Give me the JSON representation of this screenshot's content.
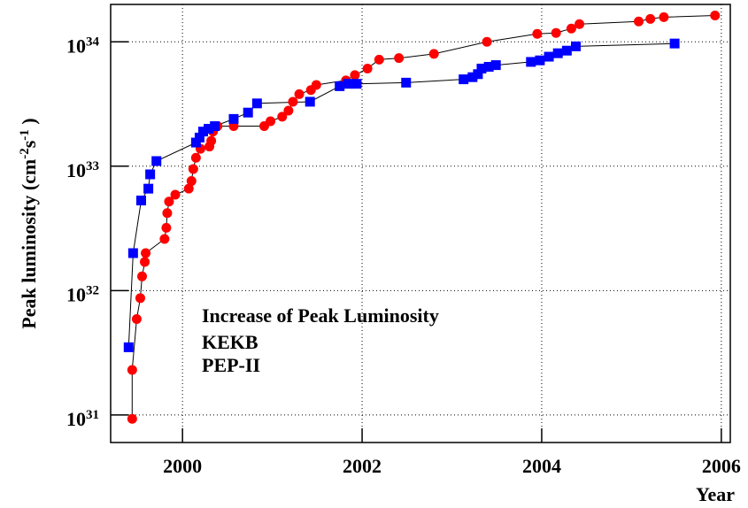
{
  "chart_data": {
    "type": "scatter",
    "annotation": "Increase of Peak Luminosity",
    "x_label": "Year",
    "y_label": "Peak luminosity (cm^-2s^-1 )",
    "xlim": [
      1999.2,
      2006.1
    ],
    "xticks": [
      2000,
      2002,
      2004,
      2006
    ],
    "ylim": [
      6e+30,
      2e+34
    ],
    "log_y": true,
    "grid": true,
    "legend": "lower-center",
    "yticks": [
      {
        "value": 1e+31,
        "label": "10^31"
      },
      {
        "value": 1e+32,
        "label": "10^32"
      },
      {
        "value": 1e+33,
        "label": "10^33"
      },
      {
        "value": 1e+34,
        "label": "10^34"
      }
    ],
    "series": [
      {
        "name": "KEKB",
        "color": "#ff0000",
        "marker": "circle",
        "x": [
          1999.44,
          1999.44,
          1999.49,
          1999.53,
          1999.55,
          1999.58,
          1999.59,
          1999.8,
          1999.82,
          1999.83,
          1999.85,
          1999.92,
          2000.07,
          2000.1,
          2000.12,
          2000.15,
          2000.2,
          2000.3,
          2000.32,
          2000.34,
          2000.39,
          2000.57,
          2000.91,
          2000.98,
          2001.11,
          2001.18,
          2001.23,
          2001.3,
          2001.43,
          2001.49,
          2001.82,
          2001.92,
          2002.06,
          2002.19,
          2002.41,
          2002.8,
          2003.39,
          2003.95,
          2004.16,
          2004.33,
          2004.42,
          2005.08,
          2005.21,
          2005.36,
          2005.93
        ],
        "values": [
          9.3e+30,
          2.3e+31,
          5.9e+31,
          8.7e+31,
          1.3e+32,
          1.7e+32,
          2e+32,
          2.6e+32,
          3.2e+32,
          4.2e+32,
          5.2e+32,
          5.9e+32,
          6.6e+32,
          7.6e+32,
          9.5e+32,
          1.17e+33,
          1.38e+33,
          1.44e+33,
          1.6e+33,
          1.9e+33,
          2.1e+33,
          2.1e+33,
          2.1e+33,
          2.3e+33,
          2.5e+33,
          2.8e+33,
          3.3e+33,
          3.8e+33,
          4.1e+33,
          4.5e+33,
          4.9e+33,
          5.4e+33,
          6.1e+33,
          7.2e+33,
          7.4e+33,
          8e+33,
          1e+34,
          1.16e+34,
          1.18e+34,
          1.28e+34,
          1.39e+34,
          1.46e+34,
          1.53e+34,
          1.58e+34,
          1.63e+34
        ]
      },
      {
        "name": "PEP-II",
        "color": "#0000ff",
        "marker": "square",
        "x": [
          1999.4,
          1999.45,
          1999.54,
          1999.62,
          1999.64,
          1999.71,
          2000.15,
          2000.19,
          2000.23,
          2000.29,
          2000.36,
          2000.57,
          2000.73,
          2000.83,
          2001.42,
          2001.75,
          2001.84,
          2001.94,
          2002.49,
          2003.13,
          2003.23,
          2003.29,
          2003.33,
          2003.41,
          2003.49,
          2003.88,
          2003.98,
          2004.08,
          2004.18,
          2004.28,
          2004.38,
          2005.48
        ],
        "values": [
          3.5e+31,
          2e+32,
          5.3e+32,
          6.6e+32,
          8.6e+32,
          1.1e+33,
          1.55e+33,
          1.7e+33,
          1.9e+33,
          2e+33,
          2.1e+33,
          2.4e+33,
          2.7e+33,
          3.2e+33,
          3.3e+33,
          4.4e+33,
          4.6e+33,
          4.6e+33,
          4.7e+33,
          5e+33,
          5.2e+33,
          5.5e+33,
          6.1e+33,
          6.3e+33,
          6.5e+33,
          6.9e+33,
          7.1e+33,
          7.6e+33,
          8.1e+33,
          8.5e+33,
          9.2e+33,
          9.7e+33
        ]
      }
    ]
  }
}
